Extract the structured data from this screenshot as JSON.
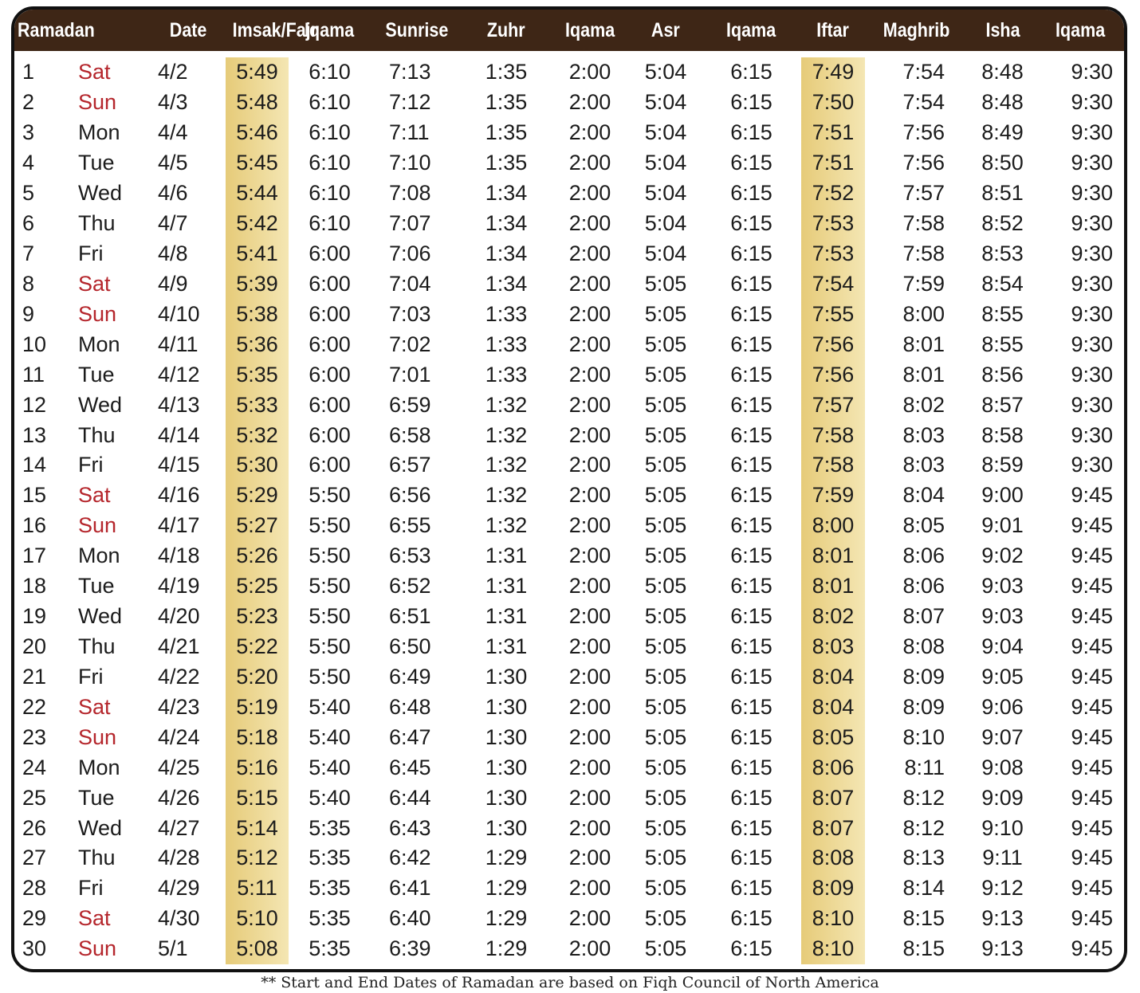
{
  "table": {
    "header": [
      "Ramadan",
      "Date",
      "Imsak/Fajr",
      "Iqama",
      "Sunrise",
      "Zuhr",
      "Iqama",
      "Asr",
      "Iqama",
      "Iftar",
      "Maghrib",
      "Isha",
      "Iqama"
    ],
    "day_colors": [
      "#b5262c",
      "#b5262c",
      "#1c1c1c",
      "#1c1c1c",
      "#1c1c1c",
      "#1c1c1c",
      "#1c1c1c",
      "#b5262c",
      "#b5262c",
      "#1c1c1c",
      "#1c1c1c",
      "#1c1c1c",
      "#1c1c1c",
      "#1c1c1c",
      "#b5262c",
      "#b5262c",
      "#1c1c1c",
      "#1c1c1c",
      "#1c1c1c",
      "#1c1c1c",
      "#1c1c1c",
      "#b5262c",
      "#b5262c",
      "#1c1c1c",
      "#1c1c1c",
      "#1c1c1c",
      "#1c1c1c",
      "#1c1c1c",
      "#b5262c",
      "#b5262c"
    ],
    "rows": [
      [
        "1",
        "Sat",
        "4/2",
        "5:49",
        "6:10",
        "7:13",
        "1:35",
        "2:00",
        "5:04",
        "6:15",
        "7:49",
        "7:54",
        "8:48",
        "9:30"
      ],
      [
        "2",
        "Sun",
        "4/3",
        "5:48",
        "6:10",
        "7:12",
        "1:35",
        "2:00",
        "5:04",
        "6:15",
        "7:50",
        "7:54",
        "8:48",
        "9:30"
      ],
      [
        "3",
        "Mon",
        "4/4",
        "5:46",
        "6:10",
        "7:11",
        "1:35",
        "2:00",
        "5:04",
        "6:15",
        "7:51",
        "7:56",
        "8:49",
        "9:30"
      ],
      [
        "4",
        "Tue",
        "4/5",
        "5:45",
        "6:10",
        "7:10",
        "1:35",
        "2:00",
        "5:04",
        "6:15",
        "7:51",
        "7:56",
        "8:50",
        "9:30"
      ],
      [
        "5",
        "Wed",
        "4/6",
        "5:44",
        "6:10",
        "7:08",
        "1:34",
        "2:00",
        "5:04",
        "6:15",
        "7:52",
        "7:57",
        "8:51",
        "9:30"
      ],
      [
        "6",
        "Thu",
        "4/7",
        "5:42",
        "6:10",
        "7:07",
        "1:34",
        "2:00",
        "5:04",
        "6:15",
        "7:53",
        "7:58",
        "8:52",
        "9:30"
      ],
      [
        "7",
        "Fri",
        "4/8",
        "5:41",
        "6:00",
        "7:06",
        "1:34",
        "2:00",
        "5:04",
        "6:15",
        "7:53",
        "7:58",
        "8:53",
        "9:30"
      ],
      [
        "8",
        "Sat",
        "4/9",
        "5:39",
        "6:00",
        "7:04",
        "1:34",
        "2:00",
        "5:05",
        "6:15",
        "7:54",
        "7:59",
        "8:54",
        "9:30"
      ],
      [
        "9",
        "Sun",
        "4/10",
        "5:38",
        "6:00",
        "7:03",
        "1:33",
        "2:00",
        "5:05",
        "6:15",
        "7:55",
        "8:00",
        "8:55",
        "9:30"
      ],
      [
        "10",
        "Mon",
        "4/11",
        "5:36",
        "6:00",
        "7:02",
        "1:33",
        "2:00",
        "5:05",
        "6:15",
        "7:56",
        "8:01",
        "8:55",
        "9:30"
      ],
      [
        "11",
        "Tue",
        "4/12",
        "5:35",
        "6:00",
        "7:01",
        "1:33",
        "2:00",
        "5:05",
        "6:15",
        "7:56",
        "8:01",
        "8:56",
        "9:30"
      ],
      [
        "12",
        "Wed",
        "4/13",
        "5:33",
        "6:00",
        "6:59",
        "1:32",
        "2:00",
        "5:05",
        "6:15",
        "7:57",
        "8:02",
        "8:57",
        "9:30"
      ],
      [
        "13",
        "Thu",
        "4/14",
        "5:32",
        "6:00",
        "6:58",
        "1:32",
        "2:00",
        "5:05",
        "6:15",
        "7:58",
        "8:03",
        "8:58",
        "9:30"
      ],
      [
        "14",
        "Fri",
        "4/15",
        "5:30",
        "6:00",
        "6:57",
        "1:32",
        "2:00",
        "5:05",
        "6:15",
        "7:58",
        "8:03",
        "8:59",
        "9:30"
      ],
      [
        "15",
        "Sat",
        "4/16",
        "5:29",
        "5:50",
        "6:56",
        "1:32",
        "2:00",
        "5:05",
        "6:15",
        "7:59",
        "8:04",
        "9:00",
        "9:45"
      ],
      [
        "16",
        "Sun",
        "4/17",
        "5:27",
        "5:50",
        "6:55",
        "1:32",
        "2:00",
        "5:05",
        "6:15",
        "8:00",
        "8:05",
        "9:01",
        "9:45"
      ],
      [
        "17",
        "Mon",
        "4/18",
        "5:26",
        "5:50",
        "6:53",
        "1:31",
        "2:00",
        "5:05",
        "6:15",
        "8:01",
        "8:06",
        "9:02",
        "9:45"
      ],
      [
        "18",
        "Tue",
        "4/19",
        "5:25",
        "5:50",
        "6:52",
        "1:31",
        "2:00",
        "5:05",
        "6:15",
        "8:01",
        "8:06",
        "9:03",
        "9:45"
      ],
      [
        "19",
        "Wed",
        "4/20",
        "5:23",
        "5:50",
        "6:51",
        "1:31",
        "2:00",
        "5:05",
        "6:15",
        "8:02",
        "8:07",
        "9:03",
        "9:45"
      ],
      [
        "20",
        "Thu",
        "4/21",
        "5:22",
        "5:50",
        "6:50",
        "1:31",
        "2:00",
        "5:05",
        "6:15",
        "8:03",
        "8:08",
        "9:04",
        "9:45"
      ],
      [
        "21",
        "Fri",
        "4/22",
        "5:20",
        "5:50",
        "6:49",
        "1:30",
        "2:00",
        "5:05",
        "6:15",
        "8:04",
        "8:09",
        "9:05",
        "9:45"
      ],
      [
        "22",
        "Sat",
        "4/23",
        "5:19",
        "5:40",
        "6:48",
        "1:30",
        "2:00",
        "5:05",
        "6:15",
        "8:04",
        "8:09",
        "9:06",
        "9:45"
      ],
      [
        "23",
        "Sun",
        "4/24",
        "5:18",
        "5:40",
        "6:47",
        "1:30",
        "2:00",
        "5:05",
        "6:15",
        "8:05",
        "8:10",
        "9:07",
        "9:45"
      ],
      [
        "24",
        "Mon",
        "4/25",
        "5:16",
        "5:40",
        "6:45",
        "1:30",
        "2:00",
        "5:05",
        "6:15",
        "8:06",
        "8:11",
        "9:08",
        "9:45"
      ],
      [
        "25",
        "Tue",
        "4/26",
        "5:15",
        "5:40",
        "6:44",
        "1:30",
        "2:00",
        "5:05",
        "6:15",
        "8:07",
        "8:12",
        "9:09",
        "9:45"
      ],
      [
        "26",
        "Wed",
        "4/27",
        "5:14",
        "5:35",
        "6:43",
        "1:30",
        "2:00",
        "5:05",
        "6:15",
        "8:07",
        "8:12",
        "9:10",
        "9:45"
      ],
      [
        "27",
        "Thu",
        "4/28",
        "5:12",
        "5:35",
        "6:42",
        "1:29",
        "2:00",
        "5:05",
        "6:15",
        "8:08",
        "8:13",
        "9:11",
        "9:45"
      ],
      [
        "28",
        "Fri",
        "4/29",
        "5:11",
        "5:35",
        "6:41",
        "1:29",
        "2:00",
        "5:05",
        "6:15",
        "8:09",
        "8:14",
        "9:12",
        "9:45"
      ],
      [
        "29",
        "Sat",
        "4/30",
        "5:10",
        "5:35",
        "6:40",
        "1:29",
        "2:00",
        "5:05",
        "6:15",
        "8:10",
        "8:15",
        "9:13",
        "9:45"
      ],
      [
        "30",
        "Sun",
        "5/1",
        "5:08",
        "5:35",
        "6:39",
        "1:29",
        "2:00",
        "5:05",
        "6:15",
        "8:10",
        "8:15",
        "9:13",
        "9:45"
      ]
    ],
    "footnote": "** Start and End Dates of Ramadan are based on Fiqh Council of North America"
  }
}
